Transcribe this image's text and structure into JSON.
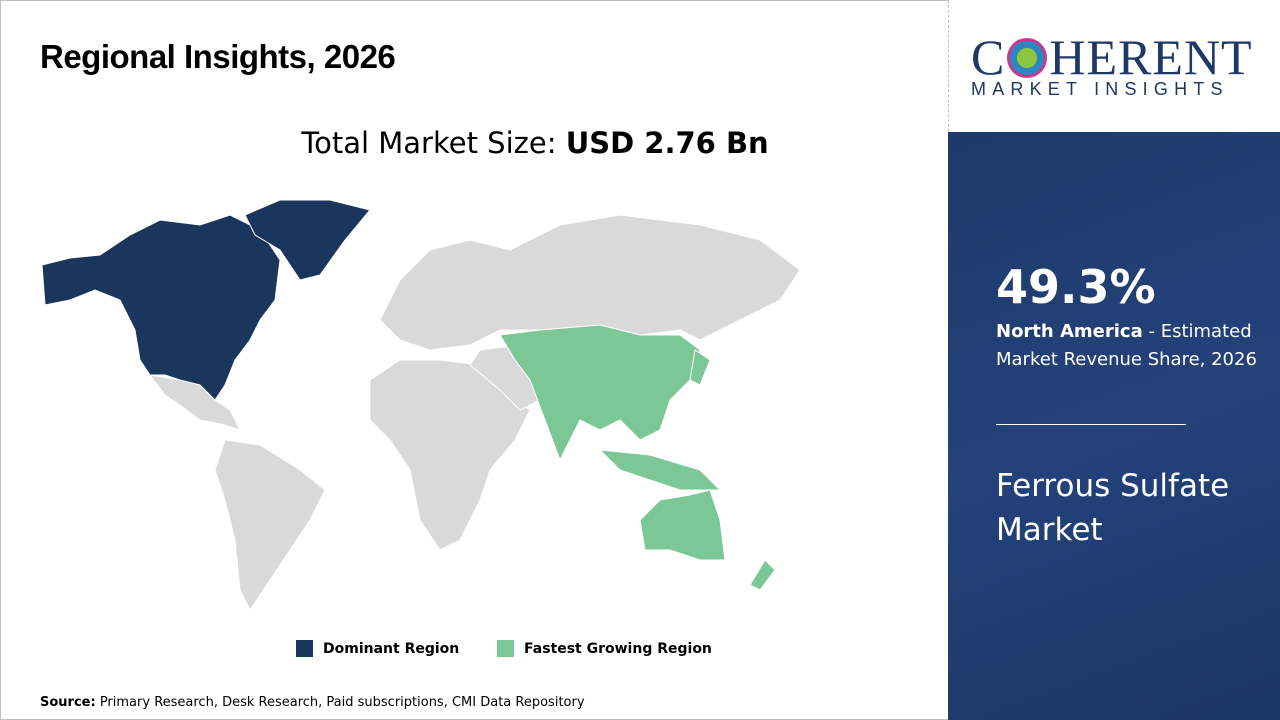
{
  "header": {
    "title": "Regional Insights, 2026"
  },
  "total": {
    "label": "Total Market Size: ",
    "value": "USD 2.76 Bn"
  },
  "legend": [
    {
      "label": "Dominant Region",
      "color": "#1b365d"
    },
    {
      "label": "Fastest Growing Region",
      "color": "#7bc896"
    }
  ],
  "source": {
    "label": "Source:",
    "text": " Primary Research, Desk Research, Paid subscriptions, CMI Data Repository"
  },
  "logo": {
    "top": "COHERENT",
    "bottom": "MARKET INSIGHTS"
  },
  "panel": {
    "share": "49.3%",
    "region": "North America",
    "desc": " - Estimated Market Revenue Share, 2026",
    "market": "Ferrous Sulfate Market"
  },
  "map": {
    "dominant": "North America",
    "fastest": "Asia Pacific",
    "colors": {
      "dominant": "#1b365d",
      "fastest": "#7bc896",
      "other": "#d9d9d9"
    }
  }
}
